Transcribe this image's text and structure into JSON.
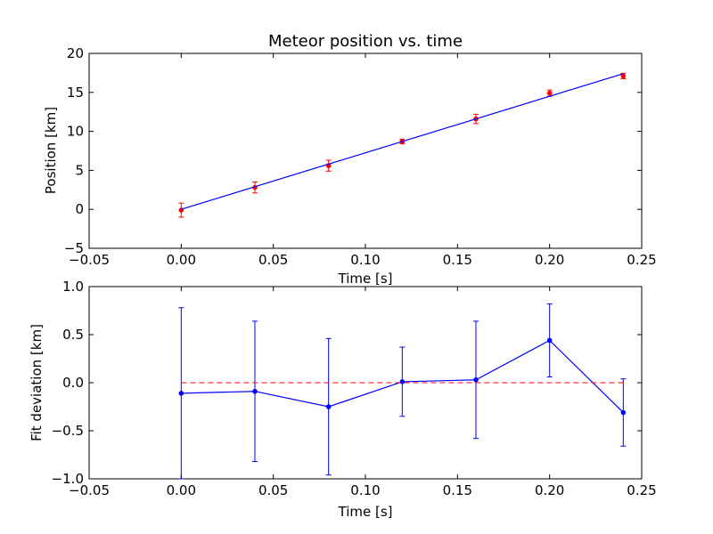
{
  "chart_data": [
    {
      "type": "scatter",
      "title": "Meteor position vs. time",
      "xlabel": "Time [s]",
      "ylabel": "Position [km]",
      "xlim": [
        -0.05,
        0.25
      ],
      "ylim": [
        -5,
        20
      ],
      "xticks": [
        -0.05,
        0.0,
        0.05,
        0.1,
        0.15,
        0.2,
        0.25
      ],
      "xtick_labels": [
        "−0.05",
        "0.00",
        "0.05",
        "0.10",
        "0.15",
        "0.20",
        "0.25"
      ],
      "yticks": [
        -5,
        0,
        5,
        10,
        15,
        20
      ],
      "ytick_labels": [
        "−5",
        "0",
        "5",
        "10",
        "15",
        "20"
      ],
      "grid": false,
      "series": [
        {
          "kind": "errorbar",
          "color": "#ff0000",
          "x": [
            0.0,
            0.04,
            0.08,
            0.12,
            0.16,
            0.2,
            0.24
          ],
          "y": [
            -0.1,
            2.8,
            5.6,
            8.7,
            11.6,
            14.9,
            17.1
          ],
          "yerr": [
            0.9,
            0.7,
            0.7,
            0.3,
            0.6,
            0.4,
            0.35
          ]
        },
        {
          "kind": "line",
          "color": "#0000ff",
          "x": [
            0.0,
            0.24
          ],
          "y": [
            0.0,
            17.4
          ]
        }
      ]
    },
    {
      "type": "line",
      "title": "",
      "xlabel": "Time [s]",
      "ylabel": "Fit deviation [km]",
      "xlim": [
        -0.05,
        0.25
      ],
      "ylim": [
        -1.0,
        1.0
      ],
      "xticks": [
        -0.05,
        0.0,
        0.05,
        0.1,
        0.15,
        0.2,
        0.25
      ],
      "xtick_labels": [
        "−0.05",
        "0.00",
        "0.05",
        "0.10",
        "0.15",
        "0.20",
        "0.25"
      ],
      "yticks": [
        -1.0,
        -0.5,
        0.0,
        0.5,
        1.0
      ],
      "ytick_labels": [
        "−1.0",
        "−0.5",
        "0.0",
        "0.5",
        "1.0"
      ],
      "grid": false,
      "series": [
        {
          "kind": "errorbar-line",
          "color": "#0000ff",
          "x": [
            0.0,
            0.04,
            0.08,
            0.12,
            0.16,
            0.2,
            0.24
          ],
          "y": [
            -0.11,
            -0.09,
            -0.25,
            0.01,
            0.03,
            0.44,
            -0.31
          ],
          "yerr": [
            0.89,
            0.73,
            0.71,
            0.36,
            0.61,
            0.38,
            0.35
          ]
        },
        {
          "kind": "reference-line",
          "color": "#ff0000",
          "dashed": true,
          "y": 0.0,
          "x": [
            0.0,
            0.24
          ]
        }
      ]
    }
  ]
}
